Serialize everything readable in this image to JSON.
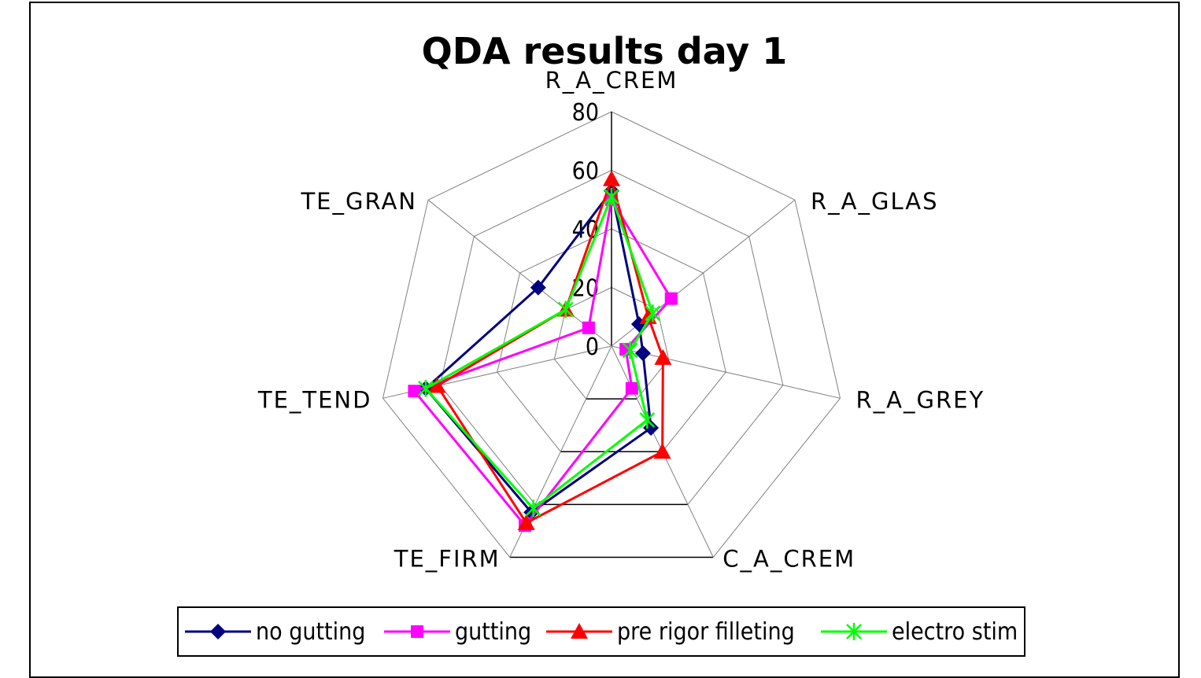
{
  "chart_data": {
    "type": "radar",
    "title": "QDA results day 1",
    "axes": [
      "R_A_CREM",
      "R_A_GLAS",
      "R_A_GREY",
      "C_A_CREM",
      "TE_FIRM",
      "TE_TEND",
      "TE_GRAN"
    ],
    "rlim": [
      0,
      80
    ],
    "ticks": [
      "0",
      "20",
      "40",
      "60",
      "80"
    ],
    "tick_values": [
      0,
      20,
      40,
      60,
      80
    ],
    "grid": true,
    "legend_position": "bottom",
    "series": [
      {
        "name": "no gutting",
        "color": "#000080",
        "marker": "diamond",
        "values": [
          53,
          12,
          11,
          31,
          63,
          65,
          32
        ]
      },
      {
        "name": "gutting",
        "color": "#FF00FF",
        "marker": "square",
        "values": [
          50,
          26,
          5,
          16,
          68,
          69,
          10
        ]
      },
      {
        "name": "pre rigor filleting",
        "color": "#FF0000",
        "marker": "triangle",
        "values": [
          57,
          16,
          18,
          40,
          67,
          61,
          20
        ]
      },
      {
        "name": "electro stim",
        "color": "#00FF00",
        "marker": "star",
        "values": [
          51,
          18,
          6.5,
          28,
          61.5,
          65,
          20
        ]
      }
    ]
  }
}
